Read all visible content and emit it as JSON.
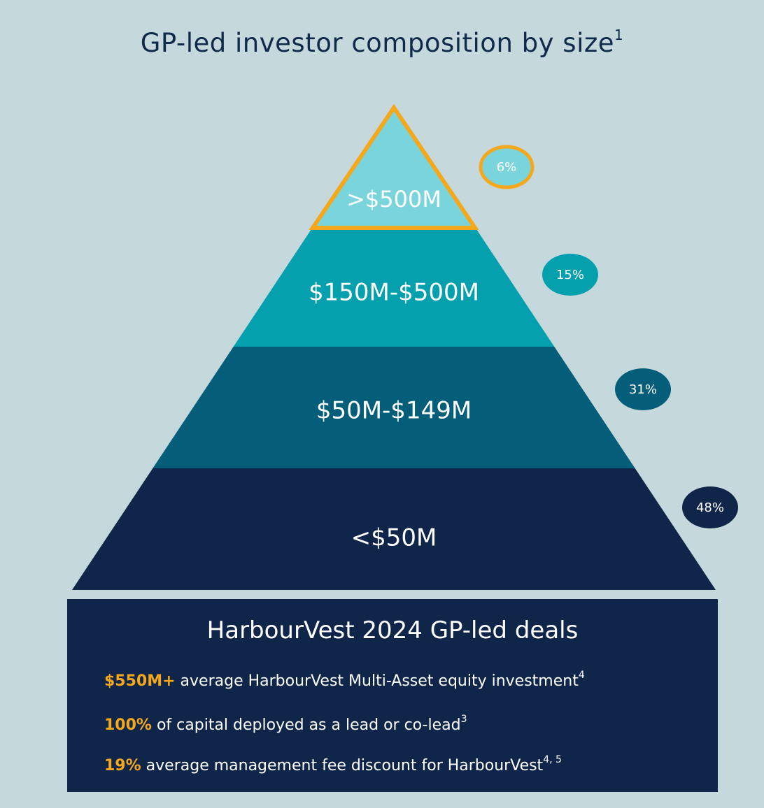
{
  "title": "GP-led investor composition by size",
  "title_sup": "1",
  "chart_data": {
    "type": "pyramid",
    "title": "GP-led investor composition by size",
    "tiers": [
      {
        "label": ">$500M",
        "value": 6,
        "display": "6%",
        "color": "#7ad4dc",
        "bubble_color": "#7ad4dc",
        "highlight": true
      },
      {
        "label": "$150M-$500M",
        "value": 15,
        "display": "15%",
        "color": "#04a0ae",
        "bubble_color": "#04a0ae",
        "highlight": false
      },
      {
        "label": "$50M-$149M",
        "value": 31,
        "display": "31%",
        "color": "#045e7a",
        "bubble_color": "#045e7a",
        "highlight": false
      },
      {
        "label": "<$50M",
        "value": 48,
        "display": "48%",
        "color": "#0f2549",
        "bubble_color": "#0f2549",
        "highlight": false
      }
    ],
    "highlight_color": "#f5a81c"
  },
  "panel": {
    "title": "HarbourVest 2024 GP-led deals",
    "facts": [
      {
        "highlight": "$550M+",
        "text": " average HarbourVest Multi-Asset equity investment",
        "sup": "4"
      },
      {
        "highlight": "100%",
        "text": " of capital deployed as a lead or co-lead",
        "sup": "3"
      },
      {
        "highlight": "19%",
        "text": " average management fee discount for HarbourVest",
        "sup": "4, 5"
      }
    ]
  },
  "colors": {
    "background": "#c5d9dd",
    "accent": "#f5a81c",
    "navy": "#0f2549"
  }
}
